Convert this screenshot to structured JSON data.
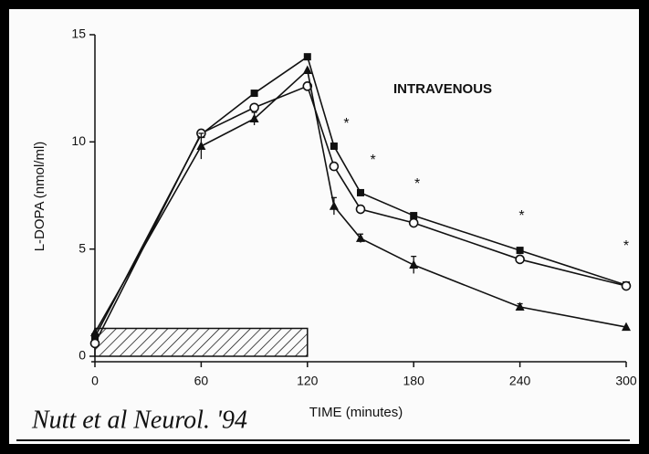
{
  "chart_data": {
    "type": "line",
    "title": "INTRAVENOUS",
    "xlabel": "TIME (minutes)",
    "ylabel": "L-DOPA (nmol/ml)",
    "note": "Nutt et al Neurol. '94",
    "x": [
      0,
      60,
      90,
      120,
      135,
      150,
      180,
      240,
      300
    ],
    "xlim": [
      0,
      300
    ],
    "xticks": [
      0,
      60,
      120,
      180,
      240,
      300
    ],
    "ylim": [
      0,
      15
    ],
    "yticks": [
      0,
      5,
      10,
      15
    ],
    "series": [
      {
        "marker": "square",
        "color": "#111111",
        "values": [
          0.9,
          10.35,
          12.27,
          13.97,
          9.8,
          7.63,
          6.56,
          4.94,
          3.32
        ]
      },
      {
        "marker": "circle",
        "color": "#111111",
        "values": [
          0.6,
          10.4,
          11.6,
          12.6,
          8.86,
          6.86,
          6.22,
          4.52,
          3.28
        ]
      },
      {
        "marker": "triangle",
        "color": "#111111",
        "values": [
          1.1,
          9.8,
          11.08,
          13.34,
          7.0,
          5.5,
          4.26,
          2.3,
          1.36
        ],
        "errors": [
          null,
          0.6,
          0.3,
          null,
          0.4,
          0.2,
          0.4,
          0.15,
          null
        ]
      }
    ],
    "infusion": {
      "xlim": [
        0,
        120
      ],
      "height": 1.3
    },
    "annotations": [
      {
        "text": "*",
        "x": 142,
        "y": 11.0
      },
      {
        "text": "*",
        "x": 157,
        "y": 9.3
      },
      {
        "text": "*",
        "x": 182,
        "y": 8.2
      },
      {
        "text": "*",
        "x": 241,
        "y": 6.7
      },
      {
        "text": "*",
        "x": 300,
        "y": 5.3
      }
    ]
  }
}
